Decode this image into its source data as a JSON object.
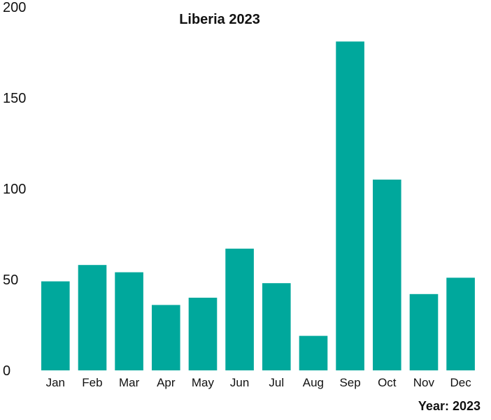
{
  "chart_data": {
    "type": "bar",
    "title": "Liberia 2023",
    "xlabel": "",
    "ylabel": "",
    "footer_label": "Year: 2023",
    "categories": [
      "Jan",
      "Feb",
      "Mar",
      "Apr",
      "May",
      "Jun",
      "Jul",
      "Aug",
      "Sep",
      "Oct",
      "Nov",
      "Dec"
    ],
    "values": [
      49,
      58,
      54,
      36,
      40,
      67,
      48,
      19,
      181,
      105,
      42,
      51
    ],
    "y_ticks": [
      "0",
      "50",
      "100",
      "150",
      "200"
    ],
    "ylim": [
      0,
      200
    ],
    "grid": false,
    "legend": "none",
    "bar_color": "#00a89c"
  }
}
